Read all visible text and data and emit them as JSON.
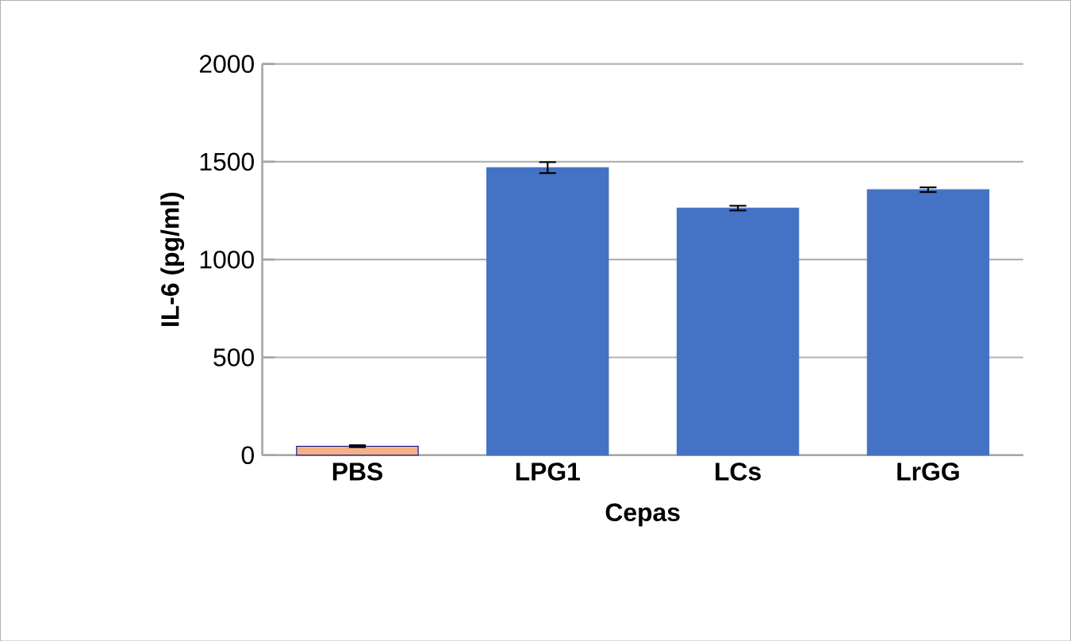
{
  "chart_data": {
    "type": "bar",
    "xlabel": "Cepas",
    "ylabel": "IL-6 (pg/ml)",
    "categories": [
      "PBS",
      "LPG1",
      "LCs",
      "LrGG"
    ],
    "values": [
      46,
      1470,
      1263,
      1357
    ],
    "errors": [
      5,
      28,
      12,
      12
    ],
    "colors": [
      "#f4b183",
      "#4472c4",
      "#4472c4",
      "#4472c4"
    ],
    "ylim": [
      0,
      2000
    ],
    "yticks": [
      0,
      500,
      1000,
      1500,
      2000
    ],
    "grid": "y"
  }
}
